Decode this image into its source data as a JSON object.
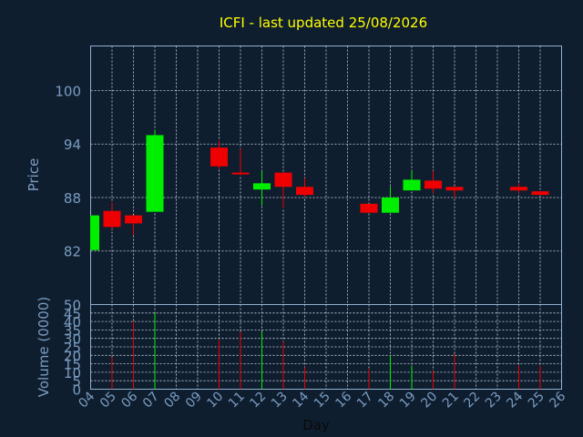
{
  "colors": {
    "background": "#0f1e2f",
    "title": "#ffff00",
    "axis": "#8fb0cf",
    "text": "#7a9cc0",
    "grid": "#c8d2dc",
    "up": "#00ee00",
    "down": "#ee0000",
    "xlabel": "#0a0a0a"
  },
  "chart_data": {
    "type": "candlestick",
    "title": "ICFI - last updated 25/08/2026",
    "xlabel": "Day",
    "ylabel": "Price",
    "volume_label": "Volume (0000)",
    "grid": true,
    "x_ticks": [
      "04",
      "05",
      "06",
      "07",
      "08",
      "09",
      "10",
      "11",
      "12",
      "13",
      "14",
      "15",
      "16",
      "17",
      "18",
      "19",
      "20",
      "21",
      "22",
      "23",
      "24",
      "25",
      "26"
    ],
    "y_ticks": [
      82,
      88,
      94,
      100
    ],
    "ylim": [
      76,
      105
    ],
    "volume_ticks": [
      0,
      5,
      10,
      15,
      20,
      25,
      30,
      35,
      40,
      45,
      50
    ],
    "volume_ylim": [
      0,
      50
    ],
    "candles": [
      {
        "day": "04",
        "open": 82.1,
        "high": 86.0,
        "low": 82.1,
        "close": 86.0,
        "volume": 0
      },
      {
        "day": "05",
        "open": 86.5,
        "high": 87.5,
        "low": 84.5,
        "close": 84.7,
        "volume": 19
      },
      {
        "day": "06",
        "open": 86.0,
        "high": 86.0,
        "low": 83.8,
        "close": 85.1,
        "volume": 40
      },
      {
        "day": "07",
        "open": 86.4,
        "high": 95.6,
        "low": 86.4,
        "close": 95.0,
        "volume": 45
      },
      {
        "day": "10",
        "open": 93.6,
        "high": 94.4,
        "low": 91.2,
        "close": 91.5,
        "volume": 29
      },
      {
        "day": "11",
        "open": 90.8,
        "high": 93.5,
        "low": 90.5,
        "close": 90.6,
        "volume": 34
      },
      {
        "day": "12",
        "open": 88.9,
        "high": 91.0,
        "low": 87.1,
        "close": 89.6,
        "volume": 34
      },
      {
        "day": "13",
        "open": 90.8,
        "high": 90.8,
        "low": 86.8,
        "close": 89.2,
        "volume": 28
      },
      {
        "day": "14",
        "open": 89.2,
        "high": 90.2,
        "low": 88.1,
        "close": 88.3,
        "volume": 13
      },
      {
        "day": "17",
        "open": 87.3,
        "high": 87.3,
        "low": 86.3,
        "close": 86.3,
        "volume": 12
      },
      {
        "day": "18",
        "open": 86.3,
        "high": 89.2,
        "low": 86.3,
        "close": 88.0,
        "volume": 20
      },
      {
        "day": "19",
        "open": 88.8,
        "high": 91.0,
        "low": 88.8,
        "close": 90.0,
        "volume": 14
      },
      {
        "day": "20",
        "open": 89.9,
        "high": 91.0,
        "low": 88.5,
        "close": 89.0,
        "volume": 11
      },
      {
        "day": "21",
        "open": 89.2,
        "high": 89.2,
        "low": 88.0,
        "close": 88.8,
        "volume": 21
      },
      {
        "day": "24",
        "open": 89.2,
        "high": 89.6,
        "low": 88.5,
        "close": 88.8,
        "volume": 14
      },
      {
        "day": "25",
        "open": 88.7,
        "high": 88.7,
        "low": 88.2,
        "close": 88.3,
        "volume": 14
      }
    ]
  }
}
